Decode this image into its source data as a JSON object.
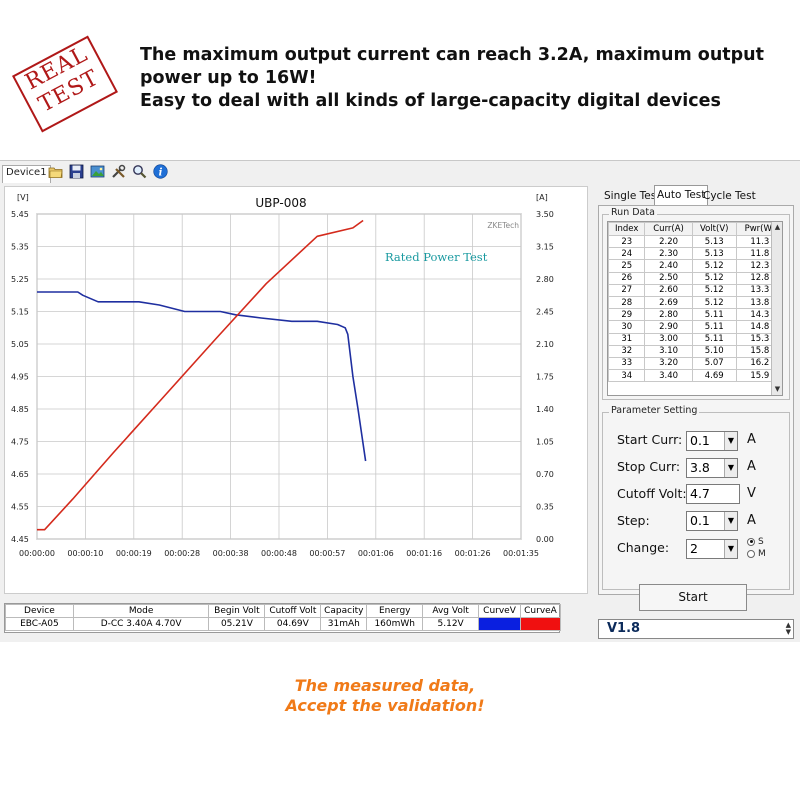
{
  "banner": {
    "stamp_line1": "REAL",
    "stamp_line2": "TEST",
    "line1": "The maximum output current can reach 3.2A, maximum output",
    "line2": "power up to 16W!",
    "line3": "Easy to deal with all kinds of large-capacity digital devices"
  },
  "toolbar": {
    "device_tab": "Device1",
    "icons": [
      "open-folder-icon",
      "save-icon",
      "screenshot-icon",
      "tools-icon",
      "zoom-icon",
      "info-icon"
    ]
  },
  "chart_data": {
    "type": "line",
    "title": "UBP-008",
    "watermark": "ZKETech",
    "annotation": "Rated Power Test",
    "left_axis_unit": "[V]",
    "right_axis_unit": "[A]",
    "left_ticks": [
      "5.45",
      "5.35",
      "5.25",
      "5.15",
      "5.05",
      "4.95",
      "4.85",
      "4.75",
      "4.65",
      "4.55",
      "4.45"
    ],
    "right_ticks": [
      "3.50",
      "3.15",
      "2.80",
      "2.45",
      "2.10",
      "1.75",
      "1.40",
      "1.05",
      "0.70",
      "0.35",
      "0.00"
    ],
    "x_ticks": [
      "00:00:00",
      "00:00:10",
      "00:00:19",
      "00:00:28",
      "00:00:38",
      "00:00:48",
      "00:00:57",
      "00:01:06",
      "00:01:16",
      "00:01:26",
      "00:01:35"
    ],
    "xlim_s": [
      0,
      95
    ],
    "ylim_left": [
      4.45,
      5.45
    ],
    "ylim_right": [
      0,
      3.5
    ],
    "grid": true,
    "series": [
      {
        "axis": "left",
        "color": "#1f2fa0",
        "x": [
          0,
          4,
          8,
          9,
          12,
          15,
          20,
          24,
          29,
          33,
          36,
          39,
          44,
          50,
          55,
          59,
          60.5,
          61,
          62,
          63,
          64.5
        ],
        "y": [
          5.21,
          5.21,
          5.21,
          5.2,
          5.18,
          5.18,
          5.18,
          5.17,
          5.15,
          5.15,
          5.15,
          5.14,
          5.13,
          5.12,
          5.12,
          5.11,
          5.1,
          5.08,
          4.95,
          4.85,
          4.69
        ]
      },
      {
        "axis": "right",
        "color": "#d42a1c",
        "x": [
          0,
          1.5,
          7,
          15,
          25,
          35,
          45,
          55,
          62,
          64
        ],
        "y": [
          0.1,
          0.1,
          0.43,
          0.93,
          1.54,
          2.15,
          2.75,
          3.26,
          3.35,
          3.43
        ]
      }
    ]
  },
  "tabs": {
    "single": "Single Test",
    "auto": "Auto Test",
    "cycle": "Cycle Test"
  },
  "run_data": {
    "title": "Run Data",
    "headers": [
      "Index",
      "Curr(A)",
      "Volt(V)",
      "Pwr(W)"
    ],
    "rows": [
      [
        "23",
        "2.20",
        "5.13",
        "11.3"
      ],
      [
        "24",
        "2.30",
        "5.13",
        "11.8"
      ],
      [
        "25",
        "2.40",
        "5.12",
        "12.3"
      ],
      [
        "26",
        "2.50",
        "5.12",
        "12.8"
      ],
      [
        "27",
        "2.60",
        "5.12",
        "13.3"
      ],
      [
        "28",
        "2.69",
        "5.12",
        "13.8"
      ],
      [
        "29",
        "2.80",
        "5.11",
        "14.3"
      ],
      [
        "30",
        "2.90",
        "5.11",
        "14.8"
      ],
      [
        "31",
        "3.00",
        "5.11",
        "15.3"
      ],
      [
        "32",
        "3.10",
        "5.10",
        "15.8"
      ],
      [
        "33",
        "3.20",
        "5.07",
        "16.2"
      ],
      [
        "34",
        "3.40",
        "4.69",
        "15.9"
      ]
    ]
  },
  "params": {
    "title": "Parameter Setting",
    "start_curr_label": "Start Curr:",
    "start_curr_value": "0.1",
    "start_curr_unit": "A",
    "stop_curr_label": "Stop Curr:",
    "stop_curr_value": "3.8",
    "stop_curr_unit": "A",
    "cutoff_label": "Cutoff Volt:",
    "cutoff_value": "4.7",
    "cutoff_unit": "V",
    "step_label": "Step:",
    "step_value": "0.1",
    "step_unit": "A",
    "change_label": "Change:",
    "change_value": "2",
    "radio_s": "S",
    "radio_m": "M",
    "start_button": "Start"
  },
  "status": {
    "headers": [
      "Device",
      "Mode",
      "Begin Volt",
      "Cutoff Volt",
      "Capacity",
      "Energy",
      "Avg Volt",
      "CurveV",
      "CurveA"
    ],
    "values": [
      "EBC-A05",
      "D-CC  3.40A  4.70V",
      "05.21V",
      "04.69V",
      "31mAh",
      "160mWh",
      "5.12V"
    ],
    "curve_v_color": "#0a1fe0",
    "curve_a_color": "#f01010"
  },
  "version": "V1.8",
  "footer": {
    "line1": "The measured data,",
    "line2": "Accept the validation!"
  }
}
